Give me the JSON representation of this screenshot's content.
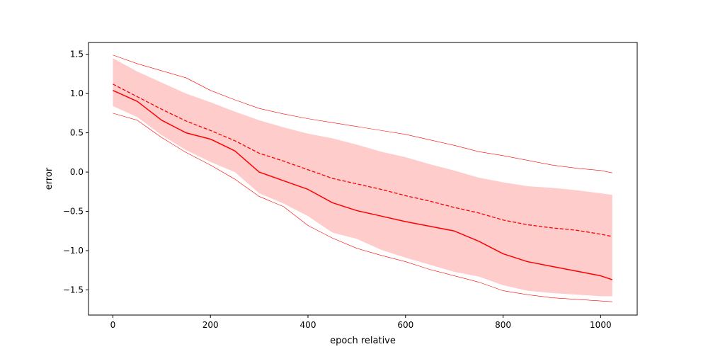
{
  "chart_data": {
    "type": "line",
    "title": "",
    "xlabel": "epoch relative",
    "ylabel": "error",
    "xlim": [
      -50,
      1075
    ],
    "ylim": [
      -1.82,
      1.65
    ],
    "xticks": [
      0,
      200,
      400,
      600,
      800,
      1000
    ],
    "yticks": [
      1.5,
      1.0,
      0.5,
      0.0,
      -0.5,
      -1.0,
      -1.5
    ],
    "grid": false,
    "legend": "none",
    "colors": {
      "line": "#ff0000",
      "band": "#ffcccc"
    },
    "x": [
      0,
      50,
      100,
      150,
      200,
      250,
      300,
      350,
      400,
      450,
      500,
      550,
      600,
      650,
      700,
      750,
      800,
      850,
      900,
      950,
      1000,
      1024
    ],
    "series": [
      {
        "style": "solid",
        "values": [
          1.04,
          0.9,
          0.66,
          0.5,
          0.42,
          0.27,
          0.0,
          -0.11,
          -0.22,
          -0.39,
          -0.49,
          -0.56,
          -0.63,
          -0.69,
          -0.75,
          -0.88,
          -1.04,
          -1.14,
          -1.2,
          -1.26,
          -1.32,
          -1.37
        ]
      },
      {
        "style": "dashed",
        "values": [
          1.12,
          0.96,
          0.8,
          0.65,
          0.53,
          0.4,
          0.24,
          0.14,
          0.03,
          -0.08,
          -0.15,
          -0.22,
          -0.3,
          -0.37,
          -0.45,
          -0.52,
          -0.61,
          -0.67,
          -0.71,
          -0.74,
          -0.79,
          -0.82
        ]
      },
      {
        "style": "band",
        "lower": [
          0.84,
          0.7,
          0.47,
          0.28,
          0.13,
          0.0,
          -0.27,
          -0.4,
          -0.56,
          -0.77,
          -0.85,
          -0.99,
          -1.09,
          -1.18,
          -1.27,
          -1.33,
          -1.44,
          -1.51,
          -1.54,
          -1.56,
          -1.58,
          -1.58
        ],
        "upper": [
          1.45,
          1.28,
          1.14,
          1.0,
          0.89,
          0.77,
          0.66,
          0.57,
          0.49,
          0.43,
          0.35,
          0.26,
          0.19,
          0.1,
          0.02,
          -0.07,
          -0.13,
          -0.18,
          -0.2,
          -0.23,
          -0.27,
          -0.29
        ]
      },
      {
        "style": "thin",
        "values": [
          1.49,
          1.38,
          1.29,
          1.2,
          1.04,
          0.92,
          0.81,
          0.74,
          0.68,
          0.63,
          0.58,
          0.53,
          0.48,
          0.41,
          0.34,
          0.26,
          0.21,
          0.15,
          0.09,
          0.05,
          0.02,
          -0.01
        ]
      },
      {
        "style": "thin",
        "values": [
          0.75,
          0.66,
          0.44,
          0.25,
          0.09,
          -0.09,
          -0.31,
          -0.44,
          -0.68,
          -0.84,
          -0.97,
          -1.06,
          -1.14,
          -1.24,
          -1.32,
          -1.4,
          -1.51,
          -1.56,
          -1.6,
          -1.62,
          -1.64,
          -1.65
        ]
      }
    ]
  }
}
